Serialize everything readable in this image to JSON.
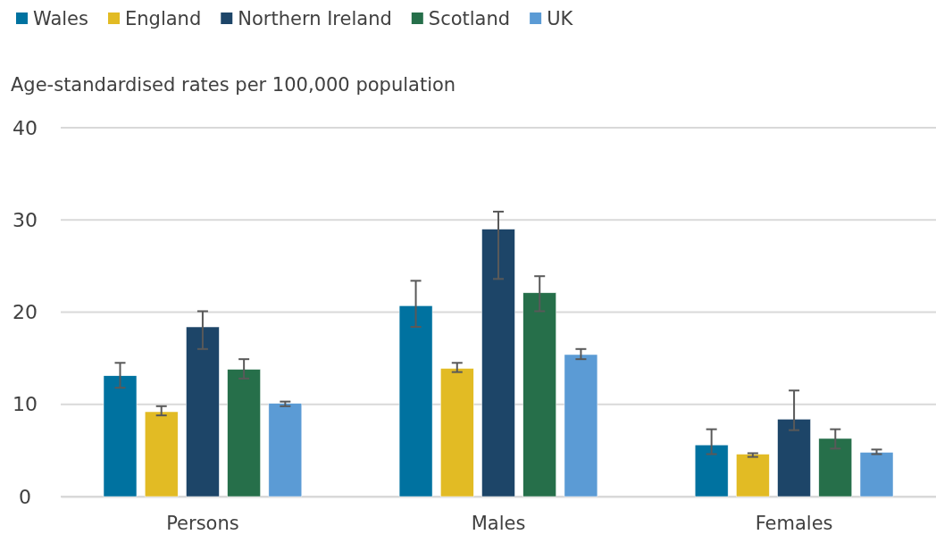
{
  "chart_data": {
    "type": "bar",
    "ylabel": "Age-standardised rates per 100,000 population",
    "categories": [
      "Persons",
      "Males",
      "Females"
    ],
    "ylim": [
      0,
      40
    ],
    "yticks": [
      0,
      10,
      20,
      30,
      40
    ],
    "grid": "y",
    "legend": "top left",
    "series": [
      {
        "name": "Wales",
        "color": "#0072a0",
        "values": [
          13.1,
          20.7,
          5.6
        ],
        "errors": [
          [
            11.8,
            14.5
          ],
          [
            18.4,
            23.4
          ],
          [
            4.6,
            7.3
          ]
        ]
      },
      {
        "name": "England",
        "color": "#e2bb24",
        "values": [
          9.2,
          13.9,
          4.6
        ],
        "errors": [
          [
            8.8,
            9.8
          ],
          [
            13.5,
            14.5
          ],
          [
            4.3,
            4.7
          ]
        ]
      },
      {
        "name": "Northern Ireland",
        "color": "#1d4568",
        "values": [
          18.4,
          29.0,
          8.4
        ],
        "errors": [
          [
            16.0,
            20.1
          ],
          [
            23.6,
            30.9
          ],
          [
            7.2,
            11.5
          ]
        ]
      },
      {
        "name": "Scotland",
        "color": "#266f4a",
        "values": [
          13.8,
          22.1,
          6.3
        ],
        "errors": [
          [
            12.8,
            14.9
          ],
          [
            20.1,
            23.9
          ],
          [
            5.2,
            7.3
          ]
        ]
      },
      {
        "name": "UK",
        "color": "#5b9bd5",
        "values": [
          10.1,
          15.4,
          4.8
        ],
        "errors": [
          [
            9.8,
            10.3
          ],
          [
            14.9,
            16.0
          ],
          [
            4.6,
            5.1
          ]
        ]
      }
    ]
  }
}
